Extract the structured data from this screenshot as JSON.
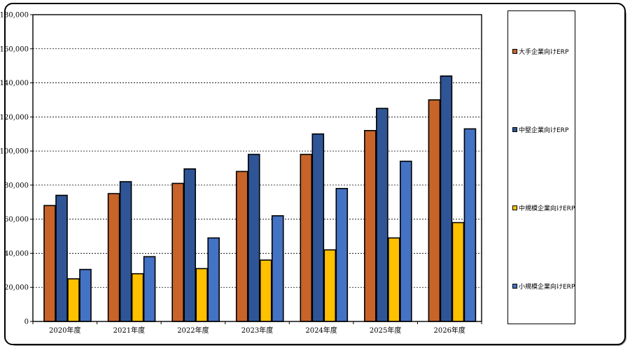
{
  "chart_data": {
    "type": "bar",
    "categories": [
      "2020年度",
      "2021年度",
      "2022年度",
      "2023年度",
      "2024年度",
      "2025年度",
      "2026年度"
    ],
    "series": [
      {
        "name": "大手企業向けERP",
        "color": "#c8642a",
        "values": [
          68000,
          75000,
          81000,
          88000,
          98000,
          112000,
          130000
        ]
      },
      {
        "name": "中堅企業向けERP",
        "color": "#2f5597",
        "values": [
          74000,
          82000,
          89500,
          98000,
          110000,
          125000,
          144000
        ]
      },
      {
        "name": "中規模企業向けERP",
        "color": "#ffc000",
        "values": [
          25000,
          28000,
          31000,
          36000,
          42000,
          49000,
          58000
        ]
      },
      {
        "name": "小規模企業向けERP",
        "color": "#4472c4",
        "values": [
          30500,
          38000,
          49000,
          62000,
          78000,
          94000,
          113000
        ]
      }
    ],
    "y_ticks": [
      "0",
      "20,000",
      "40,000",
      "60,000",
      "80,000",
      "100,000",
      "120,000",
      "140,000",
      "160,000",
      "180,000"
    ],
    "ylim": [
      0,
      180000
    ],
    "grid": true,
    "legend_position": "right"
  }
}
